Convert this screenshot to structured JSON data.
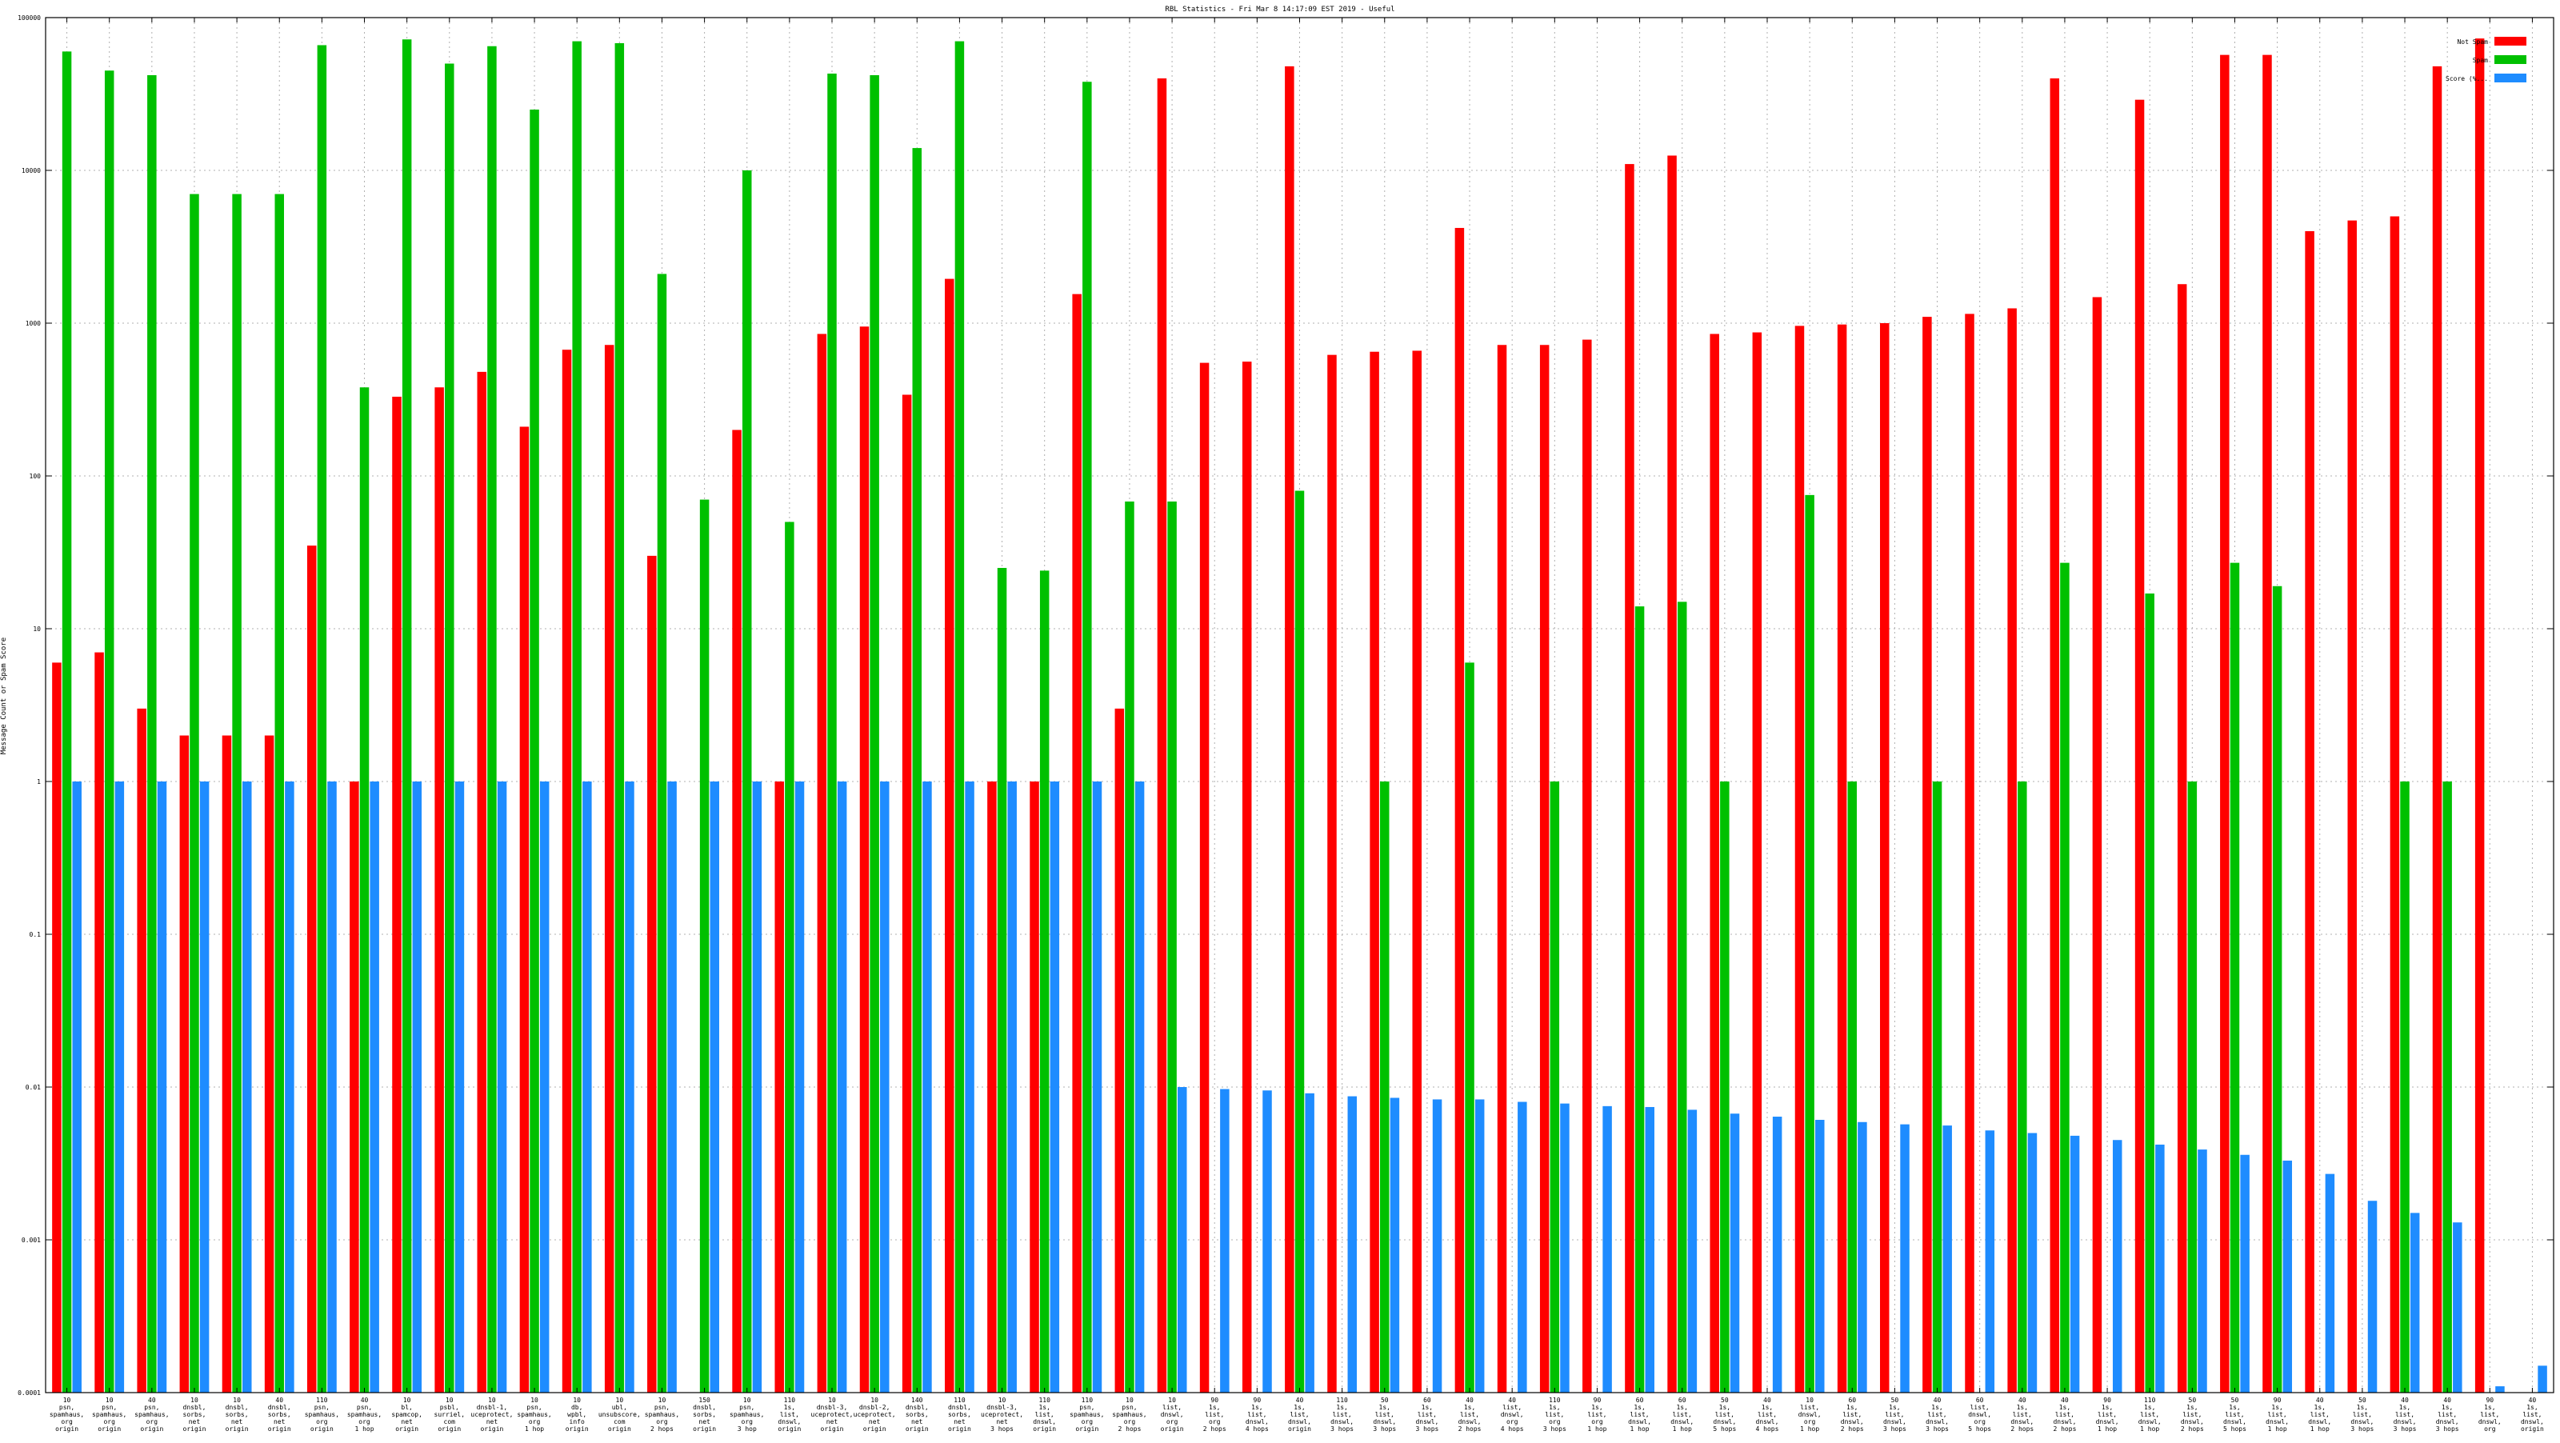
{
  "chart_data": {
    "type": "bar",
    "scale": "log",
    "title": "RBL Statistics - Fri Mar  8 14:17:09 EST 2019 - Useful",
    "ylabel": "Message Count or Spam Score",
    "ylim": [
      0.0001,
      100000
    ],
    "ytick_labels": [
      "0.0001",
      "0.001",
      "0.01",
      "0.1",
      "1",
      "10",
      "100",
      "1000",
      "10000",
      "100000"
    ],
    "grid": true,
    "legend_position": "top-right",
    "categories": [
      [
        "10",
        "psn,",
        "spamhaus,",
        "org",
        "origin"
      ],
      [
        "10",
        "psn,",
        "spamhaus,",
        "org",
        "origin"
      ],
      [
        "40",
        "psn,",
        "spamhaus,",
        "org",
        "origin"
      ],
      [
        "10",
        "dnsbl,",
        "sorbs,",
        "net",
        "origin"
      ],
      [
        "10",
        "dnsbl,",
        "sorbs,",
        "net",
        "origin"
      ],
      [
        "40",
        "dnsbl,",
        "sorbs,",
        "net",
        "origin"
      ],
      [
        "110",
        "psn,",
        "spamhaus,",
        "org",
        "origin"
      ],
      [
        "40",
        "psn,",
        "spamhaus,",
        "org",
        "1 hop"
      ],
      [
        "10",
        "bl,",
        "spamcop,",
        "net",
        "origin"
      ],
      [
        "10",
        "psbl,",
        "surriel,",
        "com",
        "origin"
      ],
      [
        "10",
        "dnsbl-1,",
        "uceprotect,",
        "net",
        "origin"
      ],
      [
        "10",
        "psn,",
        "spamhaus,",
        "org",
        "1 hop"
      ],
      [
        "10",
        "db,",
        "wpbl,",
        "info",
        "origin"
      ],
      [
        "10",
        "ubl,",
        "unsubscore,",
        "com",
        "origin"
      ],
      [
        "10",
        "psn,",
        "spamhaus,",
        "org",
        "2 hops"
      ],
      [
        "150",
        "dnsbl,",
        "sorbs,",
        "net",
        "origin"
      ],
      [
        "10",
        "psn,",
        "spamhaus,",
        "org",
        "3 hop"
      ],
      [
        "110",
        "1s,",
        "list,",
        "dnswl,",
        "origin"
      ],
      [
        "10",
        "dnsbl-3,",
        "uceprotect,",
        "net",
        "origin"
      ],
      [
        "10",
        "dnsbl-2,",
        "uceprotect,",
        "net",
        "origin"
      ],
      [
        "140",
        "dnsbl,",
        "sorbs,",
        "net",
        "origin"
      ],
      [
        "110",
        "dnsbl,",
        "sorbs,",
        "net",
        "origin"
      ],
      [
        "10",
        "dnsbl-3,",
        "uceprotect,",
        "net",
        "3 hops"
      ],
      [
        "110",
        "1s,",
        "list,",
        "dnswl,",
        "origin"
      ],
      [
        "110",
        "psn,",
        "spamhaus,",
        "org",
        "origin"
      ],
      [
        "10",
        "psn,",
        "spamhaus,",
        "org",
        "2 hops"
      ],
      [
        "10",
        "list,",
        "dnswl,",
        "org",
        "origin"
      ],
      [
        "90",
        "1s,",
        "list,",
        "org",
        "2 hops"
      ],
      [
        "90",
        "1s,",
        "list,",
        "dnswl,",
        "4 hops"
      ],
      [
        "40",
        "1s,",
        "list,",
        "dnswl,",
        "origin"
      ],
      [
        "110",
        "1s,",
        "list,",
        "dnswl,",
        "3 hops"
      ],
      [
        "50",
        "1s,",
        "list,",
        "dnswl,",
        "3 hops"
      ],
      [
        "60",
        "1s,",
        "list,",
        "dnswl,",
        "3 hops"
      ],
      [
        "40",
        "1s,",
        "list,",
        "dnswl,",
        "2 hops"
      ],
      [
        "40",
        "list,",
        "dnswl,",
        "org",
        "4 hops"
      ],
      [
        "110",
        "1s,",
        "list,",
        "org",
        "3 hops"
      ],
      [
        "90",
        "1s,",
        "list,",
        "org",
        "1 hop"
      ],
      [
        "60",
        "1s,",
        "list,",
        "dnswl,",
        "1 hop"
      ],
      [
        "60",
        "1s,",
        "list,",
        "dnswl,",
        "1 hop"
      ],
      [
        "50",
        "1s,",
        "list,",
        "dnswl,",
        "5 hops"
      ],
      [
        "40",
        "1s,",
        "list,",
        "dnswl,",
        "4 hops"
      ],
      [
        "10",
        "list,",
        "dnswl,",
        "org",
        "1 hop"
      ],
      [
        "60",
        "1s,",
        "list,",
        "dnswl,",
        "2 hops"
      ],
      [
        "50",
        "1s,",
        "list,",
        "dnswl,",
        "3 hops"
      ],
      [
        "40",
        "1s,",
        "list,",
        "dnswl,",
        "3 hops"
      ],
      [
        "60",
        "list,",
        "dnswl,",
        "org",
        "5 hops"
      ],
      [
        "40",
        "1s,",
        "list,",
        "dnswl,",
        "2 hops"
      ],
      [
        "40",
        "1s,",
        "list,",
        "dnswl,",
        "2 hops"
      ],
      [
        "90",
        "1s,",
        "list,",
        "dnswl,",
        "1 hop"
      ],
      [
        "110",
        "1s,",
        "list,",
        "dnswl,",
        "1 hop"
      ],
      [
        "50",
        "1s,",
        "list,",
        "dnswl,",
        "2 hops"
      ],
      [
        "50",
        "1s,",
        "list,",
        "dnswl,",
        "5 hops"
      ],
      [
        "90",
        "1s,",
        "list,",
        "dnswl,",
        "1 hop"
      ],
      [
        "40",
        "1s,",
        "list,",
        "dnswl,",
        "1 hop"
      ],
      [
        "50",
        "1s,",
        "list,",
        "dnswl,",
        "3 hops"
      ],
      [
        "40",
        "1s,",
        "list,",
        "dnswl,",
        "3 hops"
      ],
      [
        "40",
        "1s,",
        "list,",
        "dnswl,",
        "3 hops"
      ],
      [
        "90",
        "1s,",
        "list,",
        "dnswl,",
        "org"
      ],
      [
        "40",
        "1s,",
        "list,",
        "dnswl,",
        "origin"
      ]
    ],
    "series": [
      {
        "name": "Not Spam",
        "color": "#ff0000",
        "values": [
          6,
          7,
          3,
          2,
          2,
          2,
          35,
          1,
          330,
          380,
          480,
          210,
          670,
          720,
          30,
          null,
          200,
          1,
          850,
          950,
          340,
          1950,
          1,
          1,
          1550,
          3,
          40000,
          550,
          560,
          48000,
          620,
          650,
          660,
          4200,
          720,
          720,
          780,
          11000,
          12500,
          850,
          870,
          960,
          980,
          1000,
          1100,
          1150,
          1250,
          40000,
          1480,
          29000,
          1800,
          57000,
          57000,
          4000,
          4700,
          5000,
          48000,
          73000,
          null
        ]
      },
      {
        "name": "Spam",
        "color": "#00c000",
        "values": [
          60000,
          45000,
          42000,
          7000,
          7000,
          7000,
          66000,
          380,
          72000,
          50000,
          65000,
          25000,
          70000,
          68000,
          2100,
          70,
          10000,
          50,
          43000,
          42000,
          14000,
          70000,
          25,
          24,
          38000,
          68,
          68,
          null,
          null,
          80,
          null,
          1,
          null,
          6,
          null,
          1,
          null,
          14,
          15,
          1,
          null,
          75,
          1,
          null,
          1,
          null,
          1,
          27,
          null,
          17,
          1,
          27,
          19,
          null,
          null,
          1,
          1,
          null,
          null
        ]
      },
      {
        "name": "Score (%...",
        "color": "#1e8cff",
        "values": [
          1,
          1,
          1,
          1,
          1,
          1,
          1,
          1,
          1,
          1,
          1,
          1,
          1,
          1,
          1,
          1,
          1,
          1,
          1,
          1,
          1,
          1,
          1,
          1,
          1,
          1,
          0.01,
          0.0097,
          0.0095,
          0.0091,
          0.0087,
          0.0085,
          0.0083,
          0.0083,
          0.008,
          0.0078,
          0.0075,
          0.0074,
          0.0071,
          0.0067,
          0.0064,
          0.0061,
          0.0059,
          0.0057,
          0.0056,
          0.0052,
          0.005,
          0.0048,
          0.0045,
          0.0042,
          0.0039,
          0.0036,
          0.0033,
          0.0027,
          0.0018,
          0.0015,
          0.0013,
          0.00011,
          0.00015
        ]
      }
    ]
  }
}
